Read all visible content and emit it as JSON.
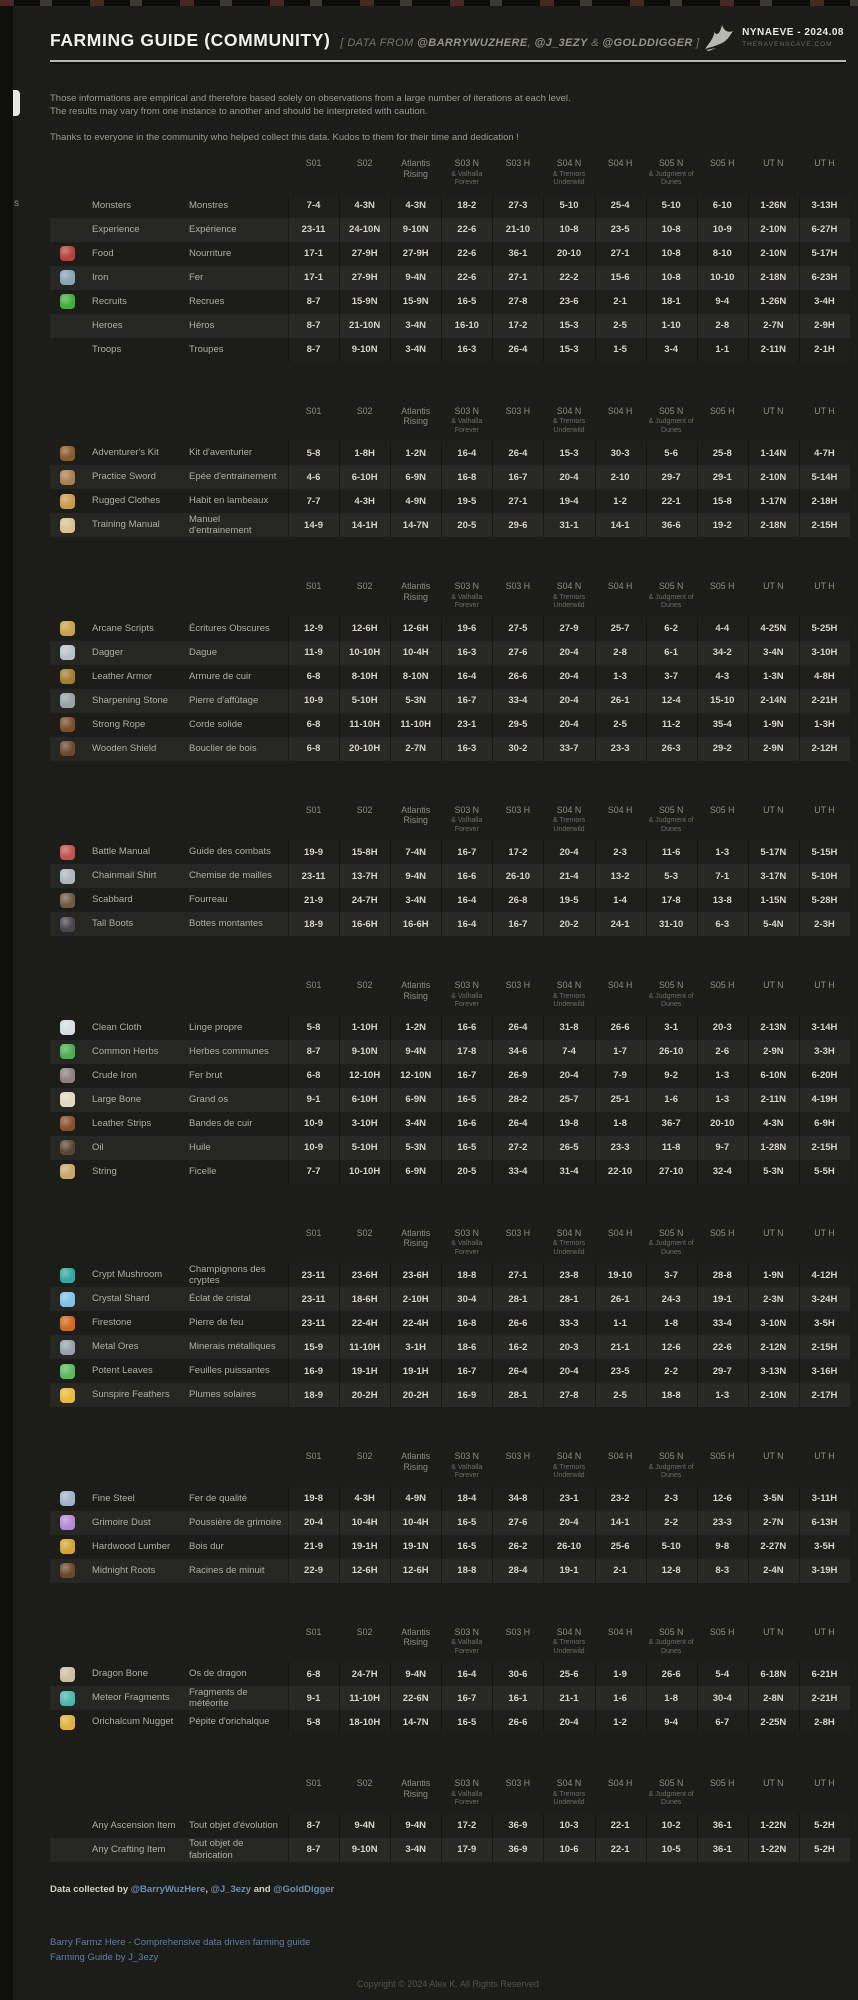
{
  "header": {
    "title": "FARMING GUIDE (COMMUNITY)",
    "subtitle_prefix": "[ DATA FROM ",
    "mention1": "@BARRYWUZHERE",
    "subtitle_sep1": ", ",
    "mention2": "@J_3EZY",
    "subtitle_sep2": " & ",
    "mention3": "@GOLDDIGGER",
    "subtitle_suffix": " ]",
    "brand_name": "NYNAEVE - 2024.08",
    "brand_sub": "THERAVENSCAVE.COM"
  },
  "edge_fragment": "s",
  "intro": {
    "line1": "Those informations are empirical and therefore based solely on observations from a large number of iterations at each level.",
    "line2": "The results may vary from one instance to another and should be interpreted with caution.",
    "line3": "Thanks to everyone in the community who helped collect this data. Kudos to them for their time and dedication !"
  },
  "columns": [
    {
      "label": "S01",
      "sub": ""
    },
    {
      "label": "S02",
      "sub": ""
    },
    {
      "label": "Atlantis Rising",
      "sub": ""
    },
    {
      "label": "S03 N",
      "sub": "& Valhalla Forever"
    },
    {
      "label": "S03 H",
      "sub": ""
    },
    {
      "label": "S04 N",
      "sub": "& Tremors Underwild"
    },
    {
      "label": "S04 H",
      "sub": ""
    },
    {
      "label": "S05 N",
      "sub": "& Judgment of Dunes"
    },
    {
      "label": "S05 H",
      "sub": ""
    },
    {
      "label": "UT N",
      "sub": ""
    },
    {
      "label": "UT H",
      "sub": ""
    }
  ],
  "tables": [
    {
      "rows": [
        {
          "icon": "",
          "icon_color": "",
          "en": "Monsters",
          "fr": "Monstres",
          "values": [
            "7-4",
            "4-3N",
            "4-3N",
            "18-2",
            "27-3",
            "5-10",
            "25-4",
            "5-10",
            "6-10",
            "1-26N",
            "3-13H"
          ]
        },
        {
          "icon": "experience",
          "icon_color": "",
          "en": "Experience",
          "fr": "Expérience",
          "values": [
            "23-11",
            "24-10N",
            "9-10N",
            "22-6",
            "21-10",
            "10-8",
            "23-5",
            "10-8",
            "10-9",
            "2-10N",
            "6-27H"
          ]
        },
        {
          "icon": "food",
          "icon_color": "#b8413a",
          "en": "Food",
          "fr": "Nourriture",
          "values": [
            "17-1",
            "27-9H",
            "27-9H",
            "22-6",
            "36-1",
            "20-10",
            "27-1",
            "10-8",
            "8-10",
            "2-10N",
            "5-17H"
          ]
        },
        {
          "icon": "iron",
          "icon_color": "#8aa3b2",
          "en": "Iron",
          "fr": "Fer",
          "values": [
            "17-1",
            "27-9H",
            "9-4N",
            "22-6",
            "27-1",
            "22-2",
            "15-6",
            "10-8",
            "10-10",
            "2-18N",
            "6-23H"
          ]
        },
        {
          "icon": "recruits",
          "icon_color": "#3fae3f",
          "en": "Recruits",
          "fr": "Recrues",
          "values": [
            "8-7",
            "15-9N",
            "15-9N",
            "16-5",
            "27-8",
            "23-6",
            "2-1",
            "18-1",
            "9-4",
            "1-26N",
            "3-4H"
          ]
        },
        {
          "icon": "",
          "icon_color": "",
          "en": "Heroes",
          "fr": "Héros",
          "values": [
            "8-7",
            "21-10N",
            "3-4N",
            "16-10",
            "17-2",
            "15-3",
            "2-5",
            "1-10",
            "2-8",
            "2-7N",
            "2-9H"
          ]
        },
        {
          "icon": "",
          "icon_color": "",
          "en": "Troops",
          "fr": "Troupes",
          "values": [
            "8-7",
            "9-10N",
            "3-4N",
            "16-3",
            "26-4",
            "15-3",
            "1-5",
            "3-4",
            "1-1",
            "2-11N",
            "2-1H"
          ]
        }
      ]
    },
    {
      "rows": [
        {
          "icon": "adventurers-kit",
          "icon_color": "#8a5a2e",
          "en": "Adventurer's Kit",
          "fr": "Kit d'aventurier",
          "values": [
            "5-8",
            "1-8H",
            "1-2N",
            "16-4",
            "26-4",
            "15-3",
            "30-3",
            "5-6",
            "25-8",
            "1-14N",
            "4-7H"
          ]
        },
        {
          "icon": "practice-sword",
          "icon_color": "#a97f4f",
          "en": "Practice Sword",
          "fr": "Epée d'entrainement",
          "values": [
            "4-6",
            "6-10H",
            "6-9N",
            "16-8",
            "16-7",
            "20-4",
            "2-10",
            "29-7",
            "29-1",
            "2-10N",
            "5-14H"
          ]
        },
        {
          "icon": "rugged-clothes",
          "icon_color": "#c89b4a",
          "en": "Rugged Clothes",
          "fr": "Habit en lambeaux",
          "values": [
            "7-7",
            "4-3H",
            "4-9N",
            "19-5",
            "27-1",
            "19-4",
            "1-2",
            "22-1",
            "15-8",
            "1-17N",
            "2-18H"
          ]
        },
        {
          "icon": "training-manual",
          "icon_color": "#d9c18b",
          "en": "Training Manual",
          "fr": "Manuel d'entrainement",
          "values": [
            "14-9",
            "14-1H",
            "14-7N",
            "20-5",
            "29-6",
            "31-1",
            "14-1",
            "36-6",
            "19-2",
            "2-18N",
            "2-15H"
          ]
        }
      ]
    },
    {
      "rows": [
        {
          "icon": "arcane-scripts",
          "icon_color": "#c8a04a",
          "en": "Arcane Scripts",
          "fr": "Écritures Obscures",
          "values": [
            "12-9",
            "12-6H",
            "12-6H",
            "19-6",
            "27-5",
            "27-9",
            "25-7",
            "6-2",
            "4-4",
            "4-25N",
            "5-25H"
          ]
        },
        {
          "icon": "dagger",
          "icon_color": "#b9c2c9",
          "en": "Dagger",
          "fr": "Dague",
          "values": [
            "11-9",
            "10-10H",
            "10-4H",
            "16-3",
            "27-6",
            "20-4",
            "2-8",
            "6-1",
            "34-2",
            "3-4N",
            "3-10H"
          ]
        },
        {
          "icon": "leather-armor",
          "icon_color": "#a57c33",
          "en": "Leather Armor",
          "fr": "Armure de cuir",
          "values": [
            "6-8",
            "8-10H",
            "8-10N",
            "16-4",
            "26-6",
            "20-4",
            "1-3",
            "3-7",
            "4-3",
            "1-3N",
            "4-8H"
          ]
        },
        {
          "icon": "sharpening-stone",
          "icon_color": "#9aa0a6",
          "en": "Sharpening Stone",
          "fr": "Pierre d'affûtage",
          "values": [
            "10-9",
            "5-10H",
            "5-3N",
            "16-7",
            "33-4",
            "20-4",
            "26-1",
            "12-4",
            "15-10",
            "2-14N",
            "2-21H"
          ]
        },
        {
          "icon": "strong-rope",
          "icon_color": "#7a4e28",
          "en": "Strong Rope",
          "fr": "Corde solide",
          "values": [
            "6-8",
            "11-10H",
            "11-10H",
            "23-1",
            "29-5",
            "20-4",
            "2-5",
            "11-2",
            "35-4",
            "1-9N",
            "1-3H"
          ]
        },
        {
          "icon": "wooden-shield",
          "icon_color": "#6d4a2f",
          "en": "Wooden Shield",
          "fr": "Bouclier de bois",
          "values": [
            "6-8",
            "20-10H",
            "2-7N",
            "16-3",
            "30-2",
            "33-7",
            "23-3",
            "26-3",
            "29-2",
            "2-9N",
            "2-12H"
          ]
        }
      ]
    },
    {
      "rows": [
        {
          "icon": "battle-manual",
          "icon_color": "#c0544e",
          "en": "Battle Manual",
          "fr": "Guide des combats",
          "values": [
            "19-9",
            "15-8H",
            "7-4N",
            "16-7",
            "17-2",
            "20-4",
            "2-3",
            "11-6",
            "1-3",
            "5-17N",
            "5-15H"
          ]
        },
        {
          "icon": "chainmail-shirt",
          "icon_color": "#aeb6bd",
          "en": "Chainmail Shirt",
          "fr": "Chemise de mailles",
          "values": [
            "23-11",
            "13-7H",
            "9-4N",
            "16-6",
            "26-10",
            "21-4",
            "13-2",
            "5-3",
            "7-1",
            "3-17N",
            "5-10H"
          ]
        },
        {
          "icon": "scabbard",
          "icon_color": "#6e5a44",
          "en": "Scabbard",
          "fr": "Fourreau",
          "values": [
            "21-9",
            "24-7H",
            "3-4N",
            "16-4",
            "26-8",
            "19-5",
            "1-4",
            "17-8",
            "13-8",
            "1-15N",
            "5-28H"
          ]
        },
        {
          "icon": "tall-boots",
          "icon_color": "#4a4650",
          "en": "Tall Boots",
          "fr": "Bottes montantes",
          "values": [
            "18-9",
            "16-6H",
            "16-6H",
            "16-4",
            "16-7",
            "20-2",
            "24-1",
            "31-10",
            "6-3",
            "5-4N",
            "2-3H"
          ]
        }
      ]
    },
    {
      "rows": [
        {
          "icon": "clean-cloth",
          "icon_color": "#d7dde2",
          "en": "Clean Cloth",
          "fr": "Linge propre",
          "values": [
            "5-8",
            "1-10H",
            "1-2N",
            "16-6",
            "26-4",
            "31-8",
            "26-6",
            "3-1",
            "20-3",
            "2-13N",
            "3-14H"
          ]
        },
        {
          "icon": "common-herbs",
          "icon_color": "#4caf50",
          "en": "Common Herbs",
          "fr": "Herbes communes",
          "values": [
            "8-7",
            "9-10N",
            "9-4N",
            "17-8",
            "34-6",
            "7-4",
            "1-7",
            "26-10",
            "2-6",
            "2-9N",
            "3-3H"
          ]
        },
        {
          "icon": "crude-iron",
          "icon_color": "#8e7f82",
          "en": "Crude Iron",
          "fr": "Fer brut",
          "values": [
            "6-8",
            "12-10H",
            "12-10N",
            "16-7",
            "26-9",
            "20-4",
            "7-9",
            "9-2",
            "1-3",
            "6-10N",
            "6-20H"
          ]
        },
        {
          "icon": "large-bone",
          "icon_color": "#e2d7c2",
          "en": "Large Bone",
          "fr": "Grand os",
          "values": [
            "9-1",
            "6-10H",
            "6-9N",
            "16-5",
            "28-2",
            "25-7",
            "25-1",
            "1-6",
            "1-3",
            "2-11N",
            "4-19H"
          ]
        },
        {
          "icon": "leather-strips",
          "icon_color": "#8a4f2c",
          "en": "Leather Strips",
          "fr": "Bandes de cuir",
          "values": [
            "10-9",
            "3-10H",
            "3-4N",
            "16-6",
            "26-4",
            "19-8",
            "1-8",
            "36-7",
            "20-10",
            "4-3N",
            "6-9H"
          ]
        },
        {
          "icon": "oil",
          "icon_color": "#5a4632",
          "en": "Oil",
          "fr": "Huile",
          "values": [
            "10-9",
            "5-10H",
            "5-3N",
            "16-5",
            "27-2",
            "26-5",
            "23-3",
            "11-8",
            "9-7",
            "1-28N",
            "2-15H"
          ]
        },
        {
          "icon": "string",
          "icon_color": "#c9a86a",
          "en": "String",
          "fr": "Ficelle",
          "values": [
            "7-7",
            "10-10H",
            "6-9N",
            "20-5",
            "33-4",
            "31-4",
            "22-10",
            "27-10",
            "32-4",
            "5-3N",
            "5-5H"
          ]
        }
      ]
    },
    {
      "rows": [
        {
          "icon": "crypt-mushroom",
          "icon_color": "#2fa9a0",
          "en": "Crypt Mushroom",
          "fr": "Champignons des cryptes",
          "values": [
            "23-11",
            "23-6H",
            "23-6H",
            "18-8",
            "27-1",
            "23-8",
            "19-10",
            "3-7",
            "28-8",
            "1-9N",
            "4-12H"
          ]
        },
        {
          "icon": "crystal-shard",
          "icon_color": "#7ec3e8",
          "en": "Crystal Shard",
          "fr": "Éclat de cristal",
          "values": [
            "23-11",
            "18-6H",
            "2-10H",
            "30-4",
            "28-1",
            "28-1",
            "26-1",
            "24-3",
            "19-1",
            "2-3N",
            "3-24H"
          ]
        },
        {
          "icon": "firestone",
          "icon_color": "#d2691e",
          "en": "Firestone",
          "fr": "Pierre de feu",
          "values": [
            "23-11",
            "22-4H",
            "22-4H",
            "16-8",
            "26-6",
            "33-3",
            "1-1",
            "1-8",
            "33-4",
            "3-10N",
            "3-5H"
          ]
        },
        {
          "icon": "metal-ores",
          "icon_color": "#9aa0a8",
          "en": "Metal Ores",
          "fr": "Minerais métalliques",
          "values": [
            "15-9",
            "11-10H",
            "3-1H",
            "18-6",
            "16-2",
            "20-3",
            "21-1",
            "12-6",
            "22-6",
            "2-12N",
            "2-15H"
          ]
        },
        {
          "icon": "potent-leaves",
          "icon_color": "#5cb85c",
          "en": "Potent Leaves",
          "fr": "Feuilles puissantes",
          "values": [
            "16-9",
            "19-1H",
            "19-1H",
            "16-7",
            "26-4",
            "20-4",
            "23-5",
            "2-2",
            "29-7",
            "3-13N",
            "3-16H"
          ]
        },
        {
          "icon": "sunspire-feathers",
          "icon_color": "#e8b93c",
          "en": "Sunspire Feathers",
          "fr": "Plumes solaires",
          "values": [
            "18-9",
            "20-2H",
            "20-2H",
            "16-9",
            "28-1",
            "27-8",
            "2-5",
            "18-8",
            "1-3",
            "2-10N",
            "2-17H"
          ]
        }
      ]
    },
    {
      "rows": [
        {
          "icon": "fine-steel",
          "icon_color": "#9fb3c8",
          "en": "Fine Steel",
          "fr": "Fer de qualité",
          "values": [
            "19-8",
            "4-3H",
            "4-9N",
            "18-4",
            "34-8",
            "23-1",
            "23-2",
            "2-3",
            "12-6",
            "3-5N",
            "3-11H"
          ]
        },
        {
          "icon": "grimoire-dust",
          "icon_color": "#b48ad6",
          "en": "Grimoire Dust",
          "fr": "Poussière de grimoire",
          "values": [
            "20-4",
            "10-4H",
            "10-4H",
            "16-5",
            "27-6",
            "20-4",
            "14-1",
            "2-2",
            "23-3",
            "2-7N",
            "6-13H"
          ]
        },
        {
          "icon": "hardwood-lumber",
          "icon_color": "#d4a437",
          "en": "Hardwood Lumber",
          "fr": "Bois dur",
          "values": [
            "21-9",
            "19-1H",
            "19-1N",
            "16-5",
            "26-2",
            "26-10",
            "25-6",
            "5-10",
            "9-8",
            "2-27N",
            "3-5H"
          ]
        },
        {
          "icon": "midnight-roots",
          "icon_color": "#6b4a2a",
          "en": "Midnight Roots",
          "fr": "Racines de minuit",
          "values": [
            "22-9",
            "12-6H",
            "12-6H",
            "18-8",
            "28-4",
            "19-1",
            "2-1",
            "12-8",
            "8-3",
            "2-4N",
            "3-19H"
          ]
        }
      ]
    },
    {
      "rows": [
        {
          "icon": "dragon-bone",
          "icon_color": "#cdbfa0",
          "en": "Dragon Bone",
          "fr": "Os de dragon",
          "values": [
            "6-8",
            "24-7H",
            "9-4N",
            "16-4",
            "30-6",
            "25-6",
            "1-9",
            "26-6",
            "5-4",
            "6-18N",
            "6-21H"
          ]
        },
        {
          "icon": "meteor-fragments",
          "icon_color": "#4db6ac",
          "en": "Meteor Fragments",
          "fr": "Fragments de météorite",
          "values": [
            "9-1",
            "11-10H",
            "22-6N",
            "16-7",
            "16-1",
            "21-1",
            "1-6",
            "1-8",
            "30-4",
            "2-8N",
            "2-21H"
          ]
        },
        {
          "icon": "orichalcum-nugget",
          "icon_color": "#e0b23c",
          "en": "Orichalcum Nugget",
          "fr": "Pépite d'orichalque",
          "values": [
            "5-8",
            "18-10H",
            "14-7N",
            "16-5",
            "26-6",
            "20-4",
            "1-2",
            "9-4",
            "6-7",
            "2-25N",
            "2-8H"
          ]
        }
      ]
    },
    {
      "rows": [
        {
          "icon": "",
          "icon_color": "",
          "en": "Any Ascension Item",
          "fr": "Tout objet d'évolution",
          "values": [
            "8-7",
            "9-4N",
            "9-4N",
            "17-2",
            "36-9",
            "10-3",
            "22-1",
            "10-2",
            "36-1",
            "1-22N",
            "5-2H"
          ]
        },
        {
          "icon": "",
          "icon_color": "",
          "en": "Any Crafting Item",
          "fr": "Tout objet de fabrication",
          "values": [
            "8-7",
            "9-10N",
            "3-4N",
            "17-9",
            "36-9",
            "10-6",
            "22-1",
            "10-5",
            "36-1",
            "1-22N",
            "5-2H"
          ]
        }
      ]
    }
  ],
  "footer": {
    "credit_prefix": "Data collected by ",
    "credit_link1": "@BarryWuzHere",
    "credit_sep1": ", ",
    "credit_link2": "@J_3ezy",
    "credit_sep2": " and ",
    "credit_link3": "@GoldDigger",
    "guide_link1": "Barry Farmz Here - Comprehensive data driven farming guide",
    "guide_link2": "Farming Guide by J_3ezy",
    "copyright": "Copyright © 2024 Alex K. All Rights Reserved"
  }
}
